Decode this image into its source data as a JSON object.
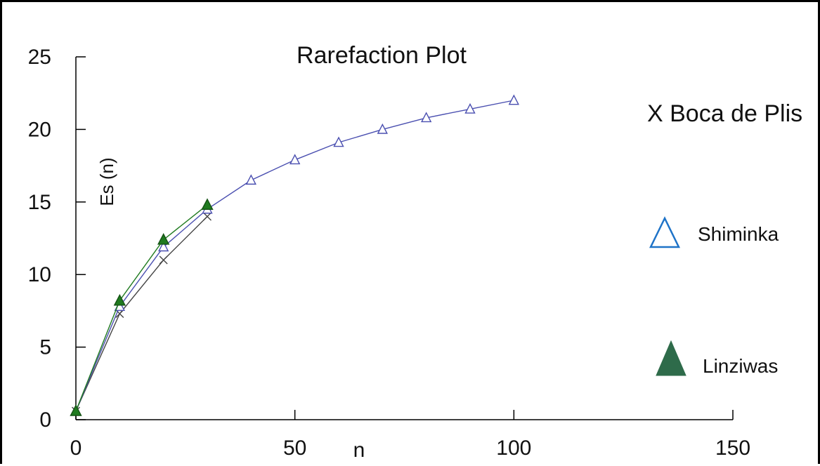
{
  "chart_data": {
    "type": "line",
    "title": "Rarefaction Plot",
    "xlabel": "n",
    "ylabel": "Es (n)",
    "xlim": [
      0,
      150
    ],
    "ylim": [
      0,
      25
    ],
    "x_ticks": [
      0,
      50,
      100,
      150
    ],
    "y_ticks": [
      0,
      5,
      10,
      15,
      20,
      25
    ],
    "grid": false,
    "legend_position": "right",
    "series": [
      {
        "name": "Boca de Plis",
        "legend_text": "X Boca de Plis",
        "marker": "x",
        "color": "#444444",
        "x": [
          0,
          10,
          20,
          30
        ],
        "y": [
          0.6,
          7.3,
          11.0,
          14.0
        ]
      },
      {
        "name": "Shiminka",
        "marker": "triangle-open",
        "color": "#4a4fb0",
        "legend_color": "#1e73c8",
        "x": [
          0,
          10,
          20,
          30,
          40,
          50,
          60,
          70,
          80,
          90,
          100
        ],
        "y": [
          0.6,
          7.8,
          11.9,
          14.5,
          16.5,
          17.9,
          19.1,
          20.0,
          20.8,
          21.4,
          22.0
        ]
      },
      {
        "name": "Linziwas",
        "marker": "triangle-filled",
        "color": "#1f7a1f",
        "legend_color": "#2e6b4a",
        "x": [
          0,
          10,
          20,
          30
        ],
        "y": [
          0.6,
          8.2,
          12.4,
          14.8
        ]
      }
    ]
  }
}
